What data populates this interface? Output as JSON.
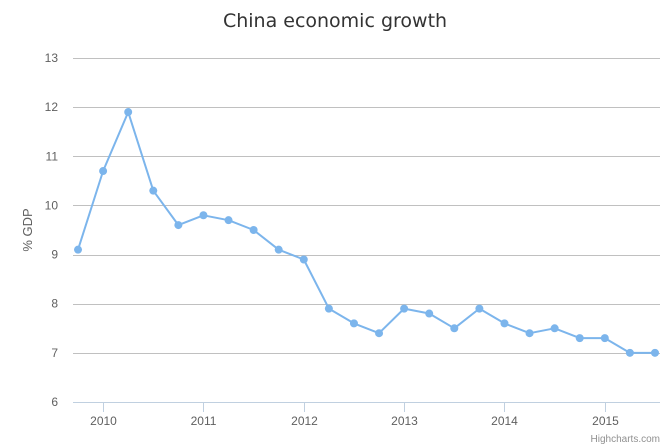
{
  "chart_data": {
    "type": "line",
    "title": "China economic growth",
    "ylabel": "% GDP",
    "xlabel": "",
    "ylim": [
      6,
      13
    ],
    "yticks": [
      6,
      7,
      8,
      9,
      10,
      11,
      12,
      13
    ],
    "xlim": [
      2009.7,
      2015.55
    ],
    "xticks": [
      "2010",
      "2011",
      "2012",
      "2013",
      "2014",
      "2015"
    ],
    "grid": true,
    "legend": "none",
    "series": [
      {
        "color": "#7cb5ec",
        "x": [
          2009.75,
          2010.0,
          2010.25,
          2010.5,
          2010.75,
          2011.0,
          2011.25,
          2011.5,
          2011.75,
          2012.0,
          2012.25,
          2012.5,
          2012.75,
          2013.0,
          2013.25,
          2013.5,
          2013.75,
          2014.0,
          2014.25,
          2014.5,
          2014.75,
          2015.0,
          2015.25,
          2015.5
        ],
        "values": [
          9.1,
          10.7,
          11.9,
          10.3,
          9.6,
          9.8,
          9.7,
          9.5,
          9.1,
          8.9,
          7.9,
          7.6,
          7.4,
          7.9,
          7.8,
          7.5,
          7.9,
          7.6,
          7.4,
          7.5,
          7.3,
          7.3,
          7.0,
          7.0
        ]
      }
    ]
  },
  "credits": "Highcharts.com"
}
